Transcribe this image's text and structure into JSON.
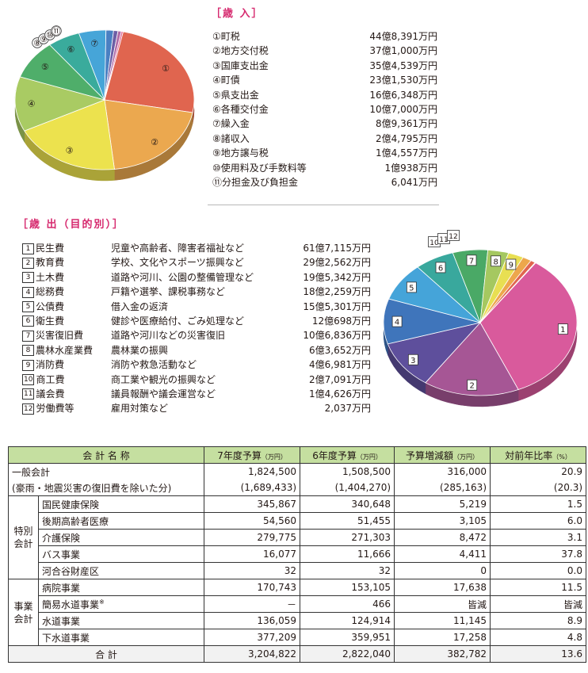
{
  "revenue": {
    "title": "［歳 入］",
    "items": [
      {
        "marker": "①",
        "label": "町税",
        "amount": "44億8,391万円",
        "value": 448391,
        "color": "#e0654f"
      },
      {
        "marker": "②",
        "label": "地方交付税",
        "amount": "37億1,000万円",
        "value": 371000,
        "color": "#eba84f"
      },
      {
        "marker": "③",
        "label": "国庫支出金",
        "amount": "35億4,539万円",
        "value": 354539,
        "color": "#ece24e"
      },
      {
        "marker": "④",
        "label": "町債",
        "amount": "23億1,530万円",
        "value": 231530,
        "color": "#a9cb63"
      },
      {
        "marker": "⑤",
        "label": "県支出金",
        "amount": "16億6,348万円",
        "value": 166348,
        "color": "#4fae6a"
      },
      {
        "marker": "⑥",
        "label": "各種交付金",
        "amount": "10億7,000万円",
        "value": 107000,
        "color": "#3aab9c"
      },
      {
        "marker": "⑦",
        "label": "繰入金",
        "amount": "8億9,361万円",
        "value": 89361,
        "color": "#46a5d8"
      },
      {
        "marker": "⑧",
        "label": "諸収入",
        "amount": "2億4,795万円",
        "value": 24795,
        "color": "#4a80c2"
      },
      {
        "marker": "⑨",
        "label": "地方譲与税",
        "amount": "1億4,557万円",
        "value": 14557,
        "color": "#6d5fa6"
      },
      {
        "marker": "⑩",
        "label": "使用料及び手数料等",
        "amount": "1億938万円",
        "value": 10938,
        "color": "#b06aa6"
      },
      {
        "marker": "⑪",
        "label": "分担金及び負担金",
        "amount": "6,041万円",
        "value": 6041,
        "color": "#e46d96"
      }
    ]
  },
  "expenditure": {
    "title": "［歳 出（目的別）］",
    "items": [
      {
        "marker": "1",
        "label": "民生費",
        "desc": "児童や高齢者、障害者福祉など",
        "amount": "61億7,115万円",
        "value": 617115,
        "color": "#d95a9c"
      },
      {
        "marker": "2",
        "label": "教育費",
        "desc": "学校、文化やスポーツ振興など",
        "amount": "29億2,562万円",
        "value": 292562,
        "color": "#a65695"
      },
      {
        "marker": "3",
        "label": "土木費",
        "desc": "道路や河川、公園の整備管理など",
        "amount": "19億5,342万円",
        "value": 195342,
        "color": "#5e4f9c"
      },
      {
        "marker": "4",
        "label": "総務費",
        "desc": "戸籍や選挙、課税事務など",
        "amount": "18億2,259万円",
        "value": 182259,
        "color": "#3f75bb"
      },
      {
        "marker": "5",
        "label": "公債費",
        "desc": "借入金の返済",
        "amount": "15億5,301万円",
        "value": 155301,
        "color": "#45a4d9"
      },
      {
        "marker": "6",
        "label": "衛生費",
        "desc": "健診や医療給付、ごみ処理など",
        "amount": "12億698万円",
        "value": 120698,
        "color": "#39a89d"
      },
      {
        "marker": "7",
        "label": "災害復旧費",
        "desc": "道路や河川などの災害復旧",
        "amount": "10億6,836万円",
        "value": 106836,
        "color": "#4aa966"
      },
      {
        "marker": "8",
        "label": "農林水産業費",
        "desc": "農林業の振興",
        "amount": "6億3,652万円",
        "value": 63652,
        "color": "#a5c860"
      },
      {
        "marker": "9",
        "label": "消防費",
        "desc": "消防や救急活動など",
        "amount": "4億6,981万円",
        "value": 46981,
        "color": "#e8df52"
      },
      {
        "marker": "10",
        "label": "商工費",
        "desc": "商工業や観光の振興など",
        "amount": "2億7,091万円",
        "value": 27091,
        "color": "#eda74c"
      },
      {
        "marker": "11",
        "label": "議会費",
        "desc": "議員報酬や議会運営など",
        "amount": "1億4,626万円",
        "value": 14626,
        "color": "#e0654f"
      },
      {
        "marker": "12",
        "label": "労働費等",
        "desc": "雇用対策など",
        "amount": "2,037万円",
        "value": 2037,
        "color": "#c9594a"
      }
    ]
  },
  "table": {
    "headers": [
      "会 計 名 称",
      "7年度予算",
      "6年度予算",
      "予算増減額",
      "対前年比率"
    ],
    "units": [
      "（万円）",
      "（万円）",
      "（万円）",
      "（%）"
    ],
    "general": {
      "name": "一般会計",
      "r7": "1,824,500",
      "r6": "1,508,500",
      "diff": "316,000",
      "ratio": "20.9"
    },
    "general_sub": {
      "name": "(豪雨・地震災害の復旧費を除いた分)",
      "r7": "(1,689,433)",
      "r6": "(1,404,270)",
      "diff": "(285,163)",
      "ratio": "(20.3)"
    },
    "special": {
      "group": [
        "特別",
        "会計"
      ],
      "rows": [
        {
          "name": "国民健康保険",
          "r7": "345,867",
          "r6": "340,648",
          "diff": "5,219",
          "ratio": "1.5"
        },
        {
          "name": "後期高齢者医療",
          "r7": "54,560",
          "r6": "51,455",
          "diff": "3,105",
          "ratio": "6.0"
        },
        {
          "name": "介護保険",
          "r7": "279,775",
          "r6": "271,303",
          "diff": "8,472",
          "ratio": "3.1"
        },
        {
          "name": "バス事業",
          "r7": "16,077",
          "r6": "11,666",
          "diff": "4,411",
          "ratio": "37.8"
        },
        {
          "name": "河合谷財産区",
          "r7": "32",
          "r6": "32",
          "diff": "0",
          "ratio": "0.0"
        }
      ]
    },
    "enterprise": {
      "group": [
        "事業",
        "会計"
      ],
      "rows": [
        {
          "name": "病院事業",
          "note": "",
          "r7": "170,743",
          "r6": "153,105",
          "diff": "17,638",
          "ratio": "11.5"
        },
        {
          "name": "簡易水道事業",
          "note": "※",
          "r7": "－",
          "r6": "466",
          "diff": "皆減",
          "ratio": "皆減"
        },
        {
          "name": "水道事業",
          "note": "",
          "r7": "136,059",
          "r6": "124,914",
          "diff": "11,145",
          "ratio": "8.9"
        },
        {
          "name": "下水道事業",
          "note": "",
          "r7": "377,209",
          "r6": "359,951",
          "diff": "17,258",
          "ratio": "4.8"
        }
      ]
    },
    "total": {
      "name": "合 計",
      "r7": "3,204,822",
      "r6": "2,822,040",
      "diff": "382,782",
      "ratio": "13.6"
    }
  },
  "chart_data": [
    {
      "type": "pie",
      "title": "［歳 入］",
      "unit": "万円",
      "labels": [
        "町税",
        "地方交付税",
        "国庫支出金",
        "町債",
        "県支出金",
        "各種交付金",
        "繰入金",
        "諸収入",
        "地方譲与税",
        "使用料及び手数料等",
        "分担金及び負担金"
      ],
      "values": [
        448391,
        371000,
        354539,
        231530,
        166348,
        107000,
        89361,
        24795,
        14557,
        10938,
        6041
      ]
    },
    {
      "type": "pie",
      "title": "［歳 出（目的別）］",
      "unit": "万円",
      "labels": [
        "民生費",
        "教育費",
        "土木費",
        "総務費",
        "公債費",
        "衛生費",
        "災害復旧費",
        "農林水産業費",
        "消防費",
        "商工費",
        "議会費",
        "労働費等"
      ],
      "values": [
        617115,
        292562,
        195342,
        182259,
        155301,
        120698,
        106836,
        63652,
        46981,
        27091,
        14626,
        2037
      ]
    }
  ]
}
